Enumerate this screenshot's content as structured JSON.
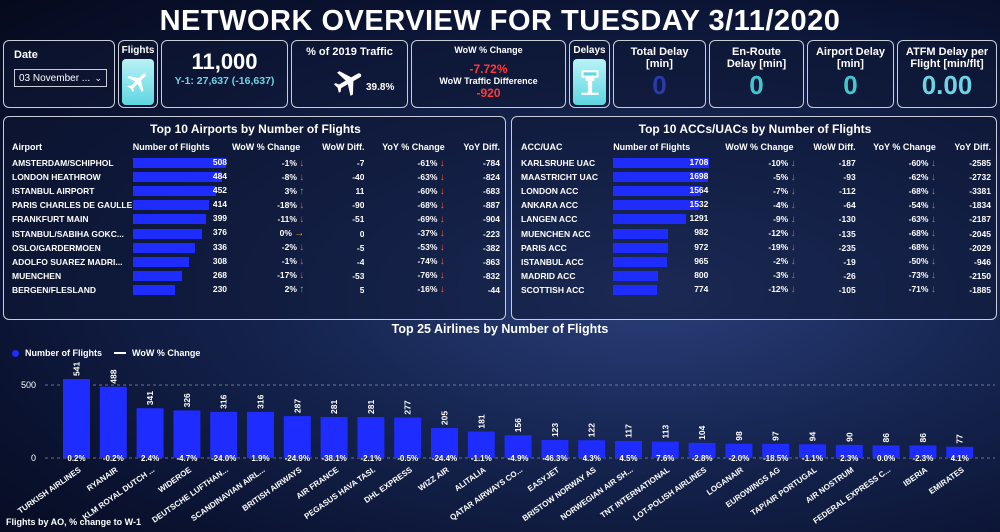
{
  "title": "NETWORK OVERVIEW FOR TUESDAY 3/11/2020",
  "date": {
    "label": "Date",
    "value": "03 November ..."
  },
  "flights": {
    "label": "Flights",
    "value": "11,000",
    "sub": "Y-1: 27,637 (-16,637)"
  },
  "traffic2019": {
    "label": "% of 2019 Traffic",
    "value": "39.8%"
  },
  "wow": {
    "label": "WoW % Change",
    "value": "-7.72%",
    "diff_label": "WoW Traffic Difference",
    "diff_value": "-920"
  },
  "delays": {
    "label": "Delays"
  },
  "kpis": [
    {
      "label1": "Total Delay",
      "label2": "[min]",
      "value": "0"
    },
    {
      "label1": "En-Route",
      "label2": "Delay [min]",
      "value": "0"
    },
    {
      "label1": "Airport Delay",
      "label2": "[min]",
      "value": "0"
    },
    {
      "label1": "ATFM Delay per",
      "label2": "Flight [min/flt]",
      "value": "0.00"
    }
  ],
  "airports": {
    "title": "Top 10 Airports by Number of Flights",
    "headers": [
      "Airport",
      "Number of Flights",
      "WoW % Change",
      "WoW Diff.",
      "YoY % Change",
      "YoY Diff."
    ],
    "rows": [
      {
        "name": "AMSTERDAM/SCHIPHOL",
        "flights": 508,
        "flights_txt": "508",
        "wow": "-1%",
        "trend": "down",
        "wowdiff": "-7",
        "yoy": "-61%",
        "yoydiff": "-784"
      },
      {
        "name": "LONDON HEATHROW",
        "flights": 484,
        "flights_txt": "484",
        "wow": "-8%",
        "trend": "down",
        "wowdiff": "-40",
        "yoy": "-63%",
        "yoydiff": "-824"
      },
      {
        "name": "ISTANBUL AIRPORT",
        "flights": 452,
        "flights_txt": "452",
        "wow": "3%",
        "trend": "up",
        "wowdiff": "11",
        "yoy": "-60%",
        "yoydiff": "-683"
      },
      {
        "name": "PARIS CHARLES DE GAULLE",
        "flights": 414,
        "flights_txt": "414",
        "wow": "-18%",
        "trend": "down",
        "wowdiff": "-90",
        "yoy": "-68%",
        "yoydiff": "-887"
      },
      {
        "name": "FRANKFURT MAIN",
        "flights": 399,
        "flights_txt": "399",
        "wow": "-11%",
        "trend": "down",
        "wowdiff": "-51",
        "yoy": "-69%",
        "yoydiff": "-904"
      },
      {
        "name": "ISTANBUL/SABIHA GOKC...",
        "flights": 376,
        "flights_txt": "376",
        "wow": "0%",
        "trend": "flat",
        "wowdiff": "0",
        "yoy": "-37%",
        "yoydiff": "-223"
      },
      {
        "name": "OSLO/GARDERMOEN",
        "flights": 336,
        "flights_txt": "336",
        "wow": "-2%",
        "trend": "down",
        "wowdiff": "-5",
        "yoy": "-53%",
        "yoydiff": "-382"
      },
      {
        "name": "ADOLFO SUAREZ MADRI...",
        "flights": 308,
        "flights_txt": "308",
        "wow": "-1%",
        "trend": "down",
        "wowdiff": "-4",
        "yoy": "-74%",
        "yoydiff": "-863"
      },
      {
        "name": "MUENCHEN",
        "flights": 268,
        "flights_txt": "268",
        "wow": "-17%",
        "trend": "down",
        "wowdiff": "-53",
        "yoy": "-76%",
        "yoydiff": "-832"
      },
      {
        "name": "BERGEN/FLESLAND",
        "flights": 230,
        "flights_txt": "230",
        "wow": "2%",
        "trend": "up",
        "wowdiff": "5",
        "yoy": "-16%",
        "yoydiff": "-44"
      }
    ]
  },
  "accs": {
    "title": "Top 10 ACCs/UACs by Number of Flights",
    "headers": [
      "ACC/UAC",
      "Number of Flights",
      "WoW % Change",
      "WoW Diff.",
      "YoY % Change",
      "YoY Diff."
    ],
    "rows": [
      {
        "name": "KARLSRUHE UAC",
        "flights": 1708,
        "flights_txt": "1708",
        "wow": "-10%",
        "trend": "down",
        "wowdiff": "-187",
        "yoy": "-60%",
        "yoydiff": "-2585"
      },
      {
        "name": "MAASTRICHT UAC",
        "flights": 1698,
        "flights_txt": "1698",
        "wow": "-5%",
        "trend": "down",
        "wowdiff": "-93",
        "yoy": "-62%",
        "yoydiff": "-2732"
      },
      {
        "name": "LONDON ACC",
        "flights": 1564,
        "flights_txt": "1564",
        "wow": "-7%",
        "trend": "down",
        "wowdiff": "-112",
        "yoy": "-68%",
        "yoydiff": "-3381"
      },
      {
        "name": "ANKARA ACC",
        "flights": 1532,
        "flights_txt": "1532",
        "wow": "-4%",
        "trend": "down",
        "wowdiff": "-64",
        "yoy": "-54%",
        "yoydiff": "-1834"
      },
      {
        "name": "LANGEN ACC",
        "flights": 1291,
        "flights_txt": "1291",
        "wow": "-9%",
        "trend": "down",
        "wowdiff": "-130",
        "yoy": "-63%",
        "yoydiff": "-2187"
      },
      {
        "name": "MUENCHEN ACC",
        "flights": 982,
        "flights_txt": "982",
        "wow": "-12%",
        "trend": "down",
        "wowdiff": "-135",
        "yoy": "-68%",
        "yoydiff": "-2045"
      },
      {
        "name": "PARIS ACC",
        "flights": 972,
        "flights_txt": "972",
        "wow": "-19%",
        "trend": "down",
        "wowdiff": "-235",
        "yoy": "-68%",
        "yoydiff": "-2029"
      },
      {
        "name": "ISTANBUL ACC",
        "flights": 965,
        "flights_txt": "965",
        "wow": "-2%",
        "trend": "down",
        "wowdiff": "-19",
        "yoy": "-50%",
        "yoydiff": "-946"
      },
      {
        "name": "MADRID ACC",
        "flights": 800,
        "flights_txt": "800",
        "wow": "-3%",
        "trend": "down",
        "wowdiff": "-26",
        "yoy": "-73%",
        "yoydiff": "-2150"
      },
      {
        "name": "SCOTTISH ACC",
        "flights": 774,
        "flights_txt": "774",
        "wow": "-12%",
        "trend": "down",
        "wowdiff": "-105",
        "yoy": "-71%",
        "yoydiff": "-1885"
      }
    ]
  },
  "airlines_title": "Top 25 Airlines by Number of Flights",
  "legend": {
    "flights": "Number of Flights",
    "wow": "WoW % Change"
  },
  "footnote": "Flights by AO, % change to W-1",
  "colors": {
    "bar": "#1e2cff",
    "accent": "#41c7d0",
    "negative": "#ff3a3a"
  },
  "chart_data": {
    "type": "bar",
    "title": "Top 25 Airlines by Number of Flights",
    "ylim": [
      0,
      600
    ],
    "yticks": [
      "0",
      "500"
    ],
    "legend_position": "top-left",
    "categories": [
      "TURKISH AIRLINES",
      "RYANAIR",
      "KLM ROYAL DUTCH ...",
      "WIDEROE",
      "DEUTSCHE LUFTHAN...",
      "SCANDINAVIAN AIRL...",
      "BRITISH AIRWAYS",
      "AIR FRANCE",
      "PEGASUS HAVA TASI.",
      "DHL EXPRESS",
      "WIZZ AIR",
      "ALITALIA",
      "QATAR AIRWAYS CO...",
      "EASYJET",
      "BRISTOW NORWAY AS",
      "NORWEGIAN AIR SH...",
      "TNT INTERNATIONAL",
      "LOT-POLISH AIRLINES",
      "LOGANAIR",
      "EUROWINGS AG",
      "TAP/AIR PORTUGAL",
      "AIR NOSTRUM",
      "FEDERAL EXPRESS C...",
      "IBERIA",
      "EMIRATES"
    ],
    "series": [
      {
        "name": "Number of Flights",
        "values": [
          541,
          488,
          341,
          326,
          316,
          316,
          287,
          281,
          281,
          277,
          205,
          181,
          156,
          123,
          122,
          117,
          113,
          104,
          98,
          97,
          94,
          90,
          86,
          86,
          77
        ]
      },
      {
        "name": "WoW % Change",
        "labels": [
          "0.2%",
          "-0.2%",
          "2.4%",
          "-4.7%",
          "-24.0%",
          "1.9%",
          "-24.9%",
          "-38.1%",
          "-2.1%",
          "-0.5%",
          "-24.4%",
          "-1.1%",
          "-4.9%",
          "-46.3%",
          "4.3%",
          "4.5%",
          "7.6%",
          "-2.8%",
          "-2.0%",
          "-18.5%",
          "-1.1%",
          "2.3%",
          "0.0%",
          "-2.3%",
          "4.1%"
        ]
      }
    ]
  }
}
